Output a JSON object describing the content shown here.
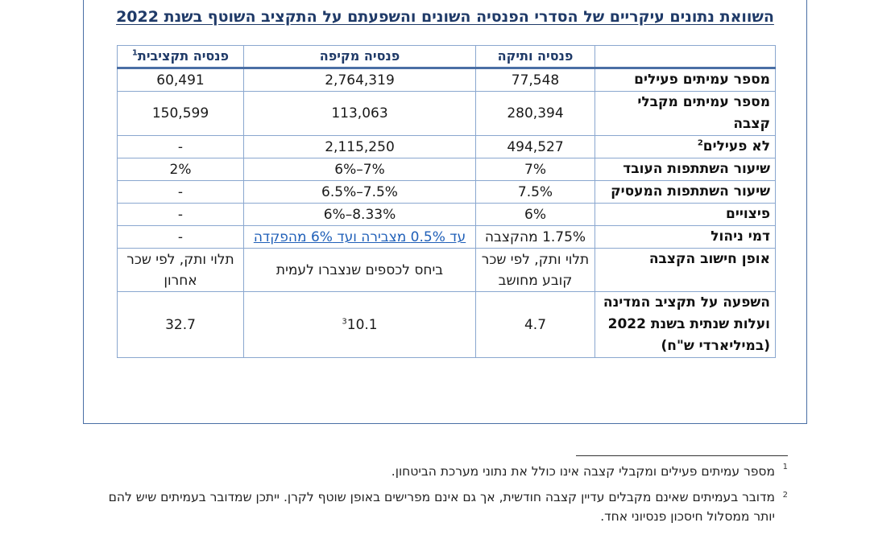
{
  "title": "השוואת נתונים עיקריים של הסדרי הפנסיה השונים והשפעתם על התקציב השוטף בשנת 2022",
  "headers": {
    "col1": "פנסיה ותיקה",
    "col2": "פנסיה מקיפה",
    "col3": "פנסיה תקציבית",
    "col3_sup": "1"
  },
  "rows": [
    {
      "label": "מספר עמיתים פעילים",
      "c1": "77,548",
      "c2": "2,764,319",
      "c3": "60,491"
    },
    {
      "label": "מספר עמיתים מקבלי קצבה",
      "c1": "280,394",
      "c2": "113,063",
      "c3": "150,599"
    },
    {
      "label": "לא פעילים",
      "label_sup": "2",
      "c1": "494,527",
      "c2": "2,115,250",
      "c3": "-"
    },
    {
      "label": "שיעור השתתפות העובד",
      "c1": "7%",
      "c2": "7%–6%",
      "c3": "2%"
    },
    {
      "label": "שיעור השתתפות המעסיק",
      "c1": "7.5%",
      "c2": "7.5%–6.5%",
      "c3": "-"
    },
    {
      "label": "פיצויים",
      "c1": "6%",
      "c2": "8.33%–6%",
      "c3": "-"
    },
    {
      "label": "דמי ניהול",
      "c1": "1.75% מהקצבה",
      "c2": "עד 0.5% מצבירה ועד 6% מהפקדה",
      "c3": "-"
    },
    {
      "label": "אופן חישוב הקצבה",
      "c1": "תלוי ותק, לפי שכר קובע מחושב",
      "c2": "ביחס לכספים שנצברו לעמית",
      "c3": "תלוי ותק, לפי שכר אחרון"
    },
    {
      "label": "השפעה על תקציב המדינה ועלות שנתית בשנת 2022 (במיליארדי ש\"ח)",
      "c1": "4.7",
      "c2": "10.1",
      "c2_sup": "3",
      "c3": "32.7"
    }
  ],
  "footnotes": [
    {
      "num": "1",
      "text": "מספר עמיתים פעילים ומקבלי קצבה אינו כולל את נתוני מערכת הביטחון."
    },
    {
      "num": "2",
      "text": "מדובר בעמיתים שאינם מקבלים עדיין קצבה חודשית, אך גם אינם מפרישים באופן שוטף לקרן. ייתכן שמדובר בעמיתים שיש להם יותר ממסלול חיסכון פנסיוני אחד."
    }
  ]
}
